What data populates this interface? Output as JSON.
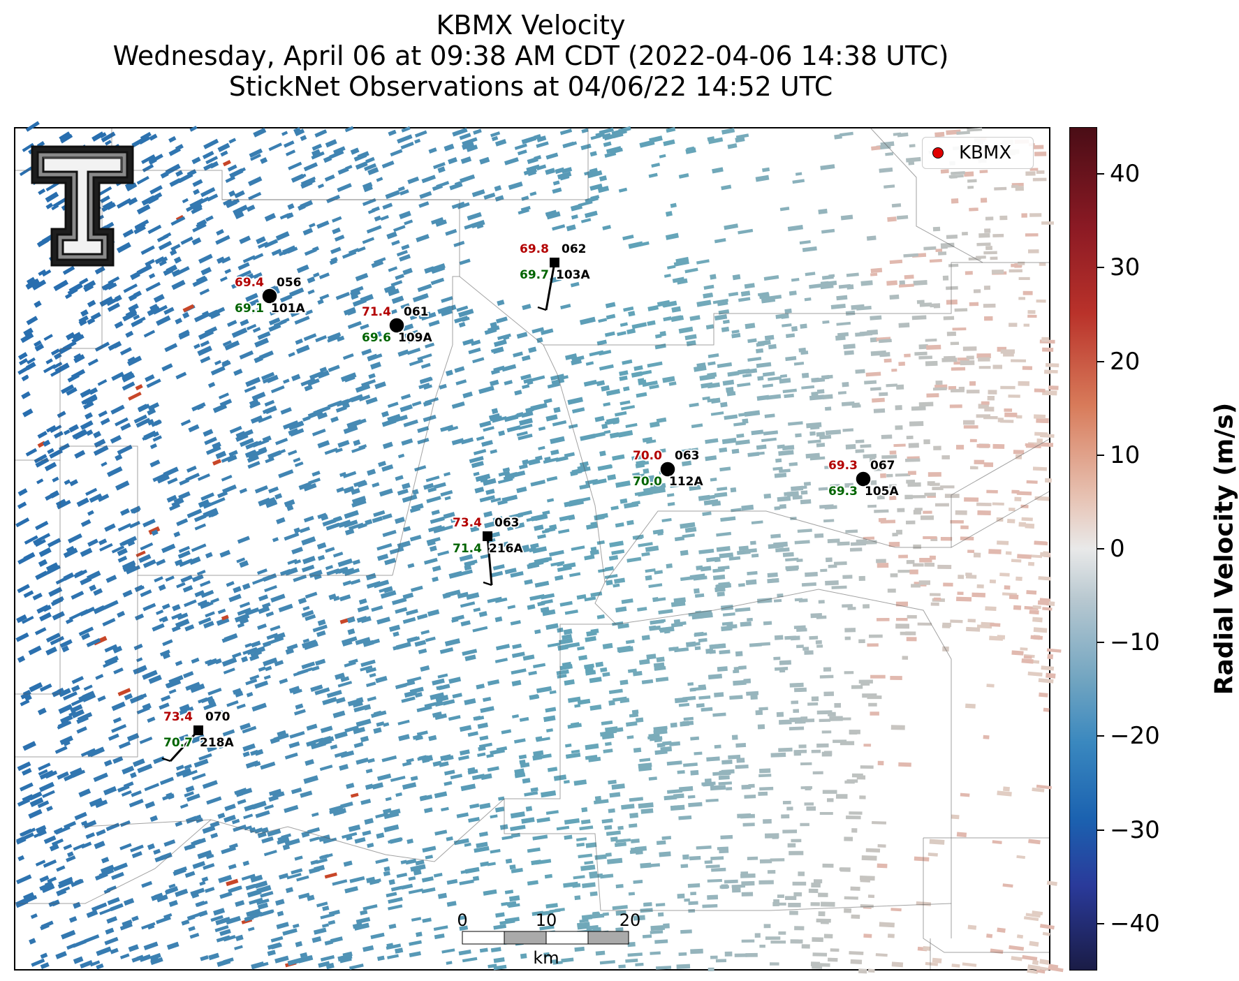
{
  "title": {
    "line1": "KBMX Velocity",
    "line2": "Wednesday, April 06 at 09:38 AM CDT (2022-04-06 14:38 UTC)",
    "line3": "StickNet Observations at 04/06/22 14:52 UTC"
  },
  "legend": {
    "label": "KBMX",
    "marker_color": "#e00000"
  },
  "colorbar": {
    "title": "Radial Velocity (m/s)",
    "ticks": [
      "40",
      "30",
      "20",
      "10",
      "0",
      "−10",
      "−20",
      "−30",
      "−40"
    ],
    "range": [
      -45,
      45
    ],
    "tick_values": [
      40,
      30,
      20,
      10,
      0,
      -10,
      -20,
      -30,
      -40
    ]
  },
  "scale_bar": {
    "labels": [
      "0",
      "10",
      "20"
    ],
    "unit": "km"
  },
  "stations": [
    {
      "id": "101A",
      "temp": "69.4",
      "dew": "69.1",
      "dir": "056",
      "marker": "circle"
    },
    {
      "id": "109A",
      "temp": "71.4",
      "dew": "69.6",
      "dir": "061",
      "marker": "circle"
    },
    {
      "id": "103A",
      "temp": "69.8",
      "dew": "69.7",
      "dir": "062",
      "marker": "square"
    },
    {
      "id": "112A",
      "temp": "70.0",
      "dew": "70.0",
      "dir": "063",
      "marker": "circle"
    },
    {
      "id": "105A",
      "temp": "69.3",
      "dew": "69.3",
      "dir": "067",
      "marker": "circle"
    },
    {
      "id": "216A",
      "temp": "73.4",
      "dew": "71.4",
      "dir": "063",
      "marker": "square"
    },
    {
      "id": "218A",
      "temp": "73.4",
      "dew": "70.7",
      "dir": "070",
      "marker": "square"
    }
  ]
}
